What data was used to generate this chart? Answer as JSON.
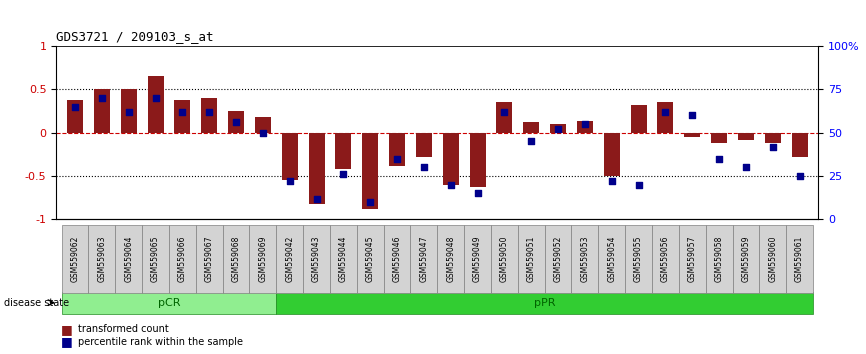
{
  "title": "GDS3721 / 209103_s_at",
  "categories": [
    "GSM559062",
    "GSM559063",
    "GSM559064",
    "GSM559065",
    "GSM559066",
    "GSM559067",
    "GSM559068",
    "GSM559069",
    "GSM559042",
    "GSM559043",
    "GSM559044",
    "GSM559045",
    "GSM559046",
    "GSM559047",
    "GSM559048",
    "GSM559049",
    "GSM559050",
    "GSM559051",
    "GSM559052",
    "GSM559053",
    "GSM559054",
    "GSM559055",
    "GSM559056",
    "GSM559057",
    "GSM559058",
    "GSM559059",
    "GSM559060",
    "GSM559061"
  ],
  "bar_values": [
    0.38,
    0.5,
    0.5,
    0.65,
    0.38,
    0.4,
    0.25,
    0.18,
    -0.55,
    -0.82,
    -0.42,
    -0.88,
    -0.38,
    -0.28,
    -0.6,
    -0.62,
    0.35,
    0.12,
    0.1,
    0.13,
    -0.5,
    0.32,
    0.35,
    -0.05,
    -0.12,
    -0.08,
    -0.12,
    -0.28
  ],
  "percentile_values": [
    65,
    70,
    62,
    70,
    62,
    62,
    56,
    50,
    22,
    12,
    26,
    10,
    35,
    30,
    20,
    15,
    62,
    45,
    52,
    55,
    22,
    20,
    62,
    60,
    35,
    30,
    42,
    25
  ],
  "pCR_range": [
    0,
    7
  ],
  "pPR_range": [
    8,
    27
  ],
  "ylim": [
    -1,
    1
  ],
  "yticks_left": [
    -1,
    -0.5,
    0,
    0.5,
    1
  ],
  "yticks_right": [
    0,
    25,
    50,
    75,
    100
  ],
  "bar_color": "#8B1A1A",
  "dot_color": "#00008B",
  "pCR_color": "#90EE90",
  "pPR_color": "#32CD32",
  "background_color": "#FFFFFF",
  "legend_red_label": "transformed count",
  "legend_blue_label": "percentile rank within the sample",
  "dotted_line_color": "#000000",
  "zero_line_color": "#CD0000"
}
